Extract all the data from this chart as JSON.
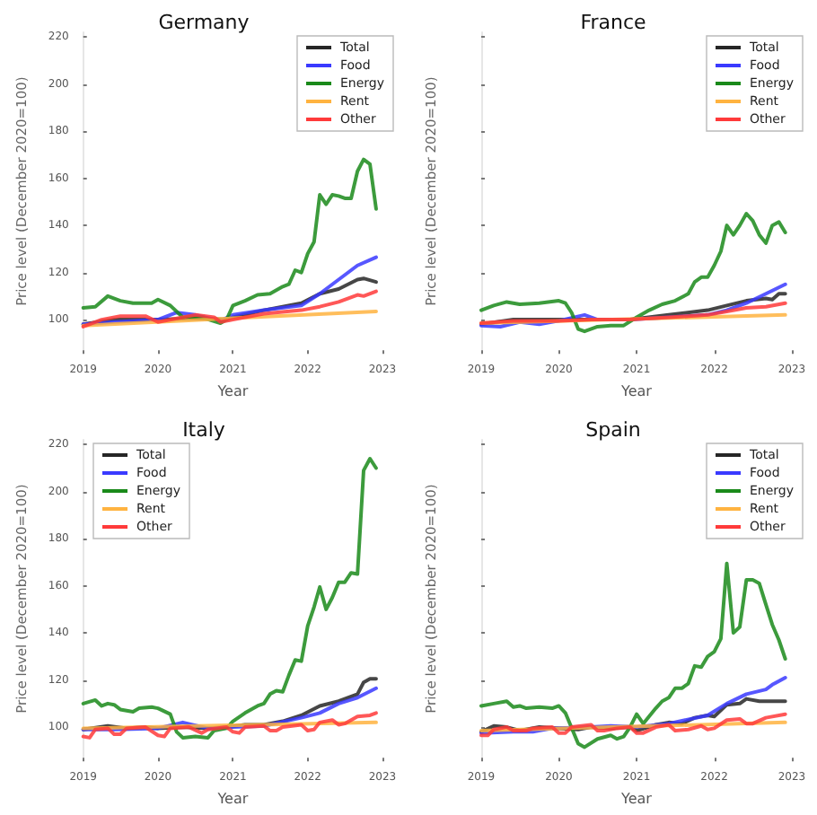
{
  "chart_data": [
    {
      "type": "line",
      "title": "Germany",
      "xlabel": "Year",
      "ylabel": "Price level (December 2020=100)",
      "xlim": [
        "2019",
        "2023"
      ],
      "xticks": [
        "2019",
        "2020",
        "2021",
        "2022",
        "2023"
      ],
      "ylim": [
        87,
        222
      ],
      "yticks": [
        100,
        120,
        140,
        160,
        180,
        200,
        220
      ],
      "legend": "top right",
      "marker": "none",
      "series": [
        {
          "name": "Total",
          "color": "#262626",
          "x": [
            "2019-01",
            "2019-06",
            "2020-01",
            "2020-07",
            "2020-12",
            "2021-01",
            "2021-06",
            "2021-12",
            "2022-03",
            "2022-06",
            "2022-09",
            "2022-10",
            "2022-12"
          ],
          "values": [
            98,
            100,
            100,
            100.5,
            100,
            101,
            104,
            107,
            111,
            113,
            117,
            117.5,
            116
          ]
        },
        {
          "name": "Food",
          "color": "#3a3aff",
          "x": [
            "2019-01",
            "2019-06",
            "2020-01",
            "2020-04",
            "2020-07",
            "2020-11",
            "2021-01",
            "2021-06",
            "2021-12",
            "2022-03",
            "2022-06",
            "2022-09",
            "2022-12"
          ],
          "values": [
            98,
            99,
            100,
            103,
            102,
            99.5,
            102,
            104,
            106,
            111,
            117,
            123,
            126.5
          ]
        },
        {
          "name": "Energy",
          "color": "#1a8a1a",
          "x": [
            "2019-01",
            "2019-03",
            "2019-05",
            "2019-07",
            "2019-09",
            "2019-12",
            "2020-01",
            "2020-03",
            "2020-05",
            "2020-08",
            "2020-11",
            "2020-12",
            "2021-01",
            "2021-03",
            "2021-05",
            "2021-07",
            "2021-09",
            "2021-10",
            "2021-11",
            "2021-12",
            "2022-01",
            "2022-02",
            "2022-03",
            "2022-04",
            "2022-05",
            "2022-06",
            "2022-07",
            "2022-08",
            "2022-09",
            "2022-10",
            "2022-11",
            "2022-12"
          ],
          "values": [
            105,
            105.5,
            110,
            108,
            107,
            107,
            108.5,
            106,
            101,
            101,
            98.5,
            100,
            106,
            108,
            110.5,
            111,
            114,
            115,
            121,
            120,
            128,
            133,
            153,
            149,
            153,
            152.5,
            151.5,
            151.5,
            163,
            168,
            166,
            147
          ]
        },
        {
          "name": "Rent",
          "color": "#ffb340",
          "x": [
            "2019-01",
            "2022-12"
          ],
          "values": [
            97.5,
            103.5
          ]
        },
        {
          "name": "Other",
          "color": "#ff3a3a",
          "x": [
            "2019-01",
            "2019-04",
            "2019-07",
            "2019-11",
            "2020-01",
            "2020-05",
            "2020-07",
            "2020-10",
            "2020-11",
            "2021-01",
            "2021-06",
            "2021-12",
            "2022-03",
            "2022-06",
            "2022-09",
            "2022-10",
            "2022-12"
          ],
          "values": [
            97,
            100,
            101.5,
            101.5,
            99,
            101,
            102,
            101,
            99,
            100,
            102.5,
            104,
            105.5,
            107.5,
            110.5,
            110,
            112
          ]
        }
      ]
    },
    {
      "type": "line",
      "title": "France",
      "xlabel": "Year",
      "ylabel": "Price level (December 2020=100)",
      "xlim": [
        "2019",
        "2023"
      ],
      "xticks": [
        "2019",
        "2020",
        "2021",
        "2022",
        "2023"
      ],
      "ylim": [
        87,
        222
      ],
      "yticks": [
        100,
        120,
        140,
        160,
        180,
        200,
        220
      ],
      "tick_labels": "x",
      "legend": "top right",
      "marker": "none",
      "series": [
        {
          "name": "Total",
          "color": "#262626",
          "x": [
            "2019-01",
            "2019-06",
            "2020-01",
            "2020-06",
            "2020-12",
            "2021-06",
            "2021-12",
            "2022-03",
            "2022-06",
            "2022-09",
            "2022-10",
            "2022-11",
            "2022-12"
          ],
          "values": [
            98,
            100,
            100,
            100,
            100,
            102,
            104,
            106,
            108,
            109,
            108.5,
            111,
            111
          ]
        },
        {
          "name": "Food",
          "color": "#3a3aff",
          "x": [
            "2019-01",
            "2019-04",
            "2019-07",
            "2019-10",
            "2020-01",
            "2020-05",
            "2020-07",
            "2020-12",
            "2021-06",
            "2021-12",
            "2022-03",
            "2022-06",
            "2022-09",
            "2022-12"
          ],
          "values": [
            97.5,
            97,
            99,
            98,
            99.5,
            102,
            100,
            100,
            101,
            102,
            104,
            107,
            111,
            115
          ]
        },
        {
          "name": "Energy",
          "color": "#1a8a1a",
          "x": [
            "2019-01",
            "2019-03",
            "2019-05",
            "2019-07",
            "2019-10",
            "2020-01",
            "2020-02",
            "2020-03",
            "2020-04",
            "2020-05",
            "2020-07",
            "2020-09",
            "2020-11",
            "2021-01",
            "2021-03",
            "2021-05",
            "2021-07",
            "2021-09",
            "2021-10",
            "2021-11",
            "2021-12",
            "2022-01",
            "2022-02",
            "2022-03",
            "2022-04",
            "2022-05",
            "2022-06",
            "2022-07",
            "2022-08",
            "2022-09",
            "2022-10",
            "2022-11",
            "2022-12"
          ],
          "values": [
            104,
            106,
            107.5,
            106.5,
            107,
            108,
            107,
            103,
            96,
            95,
            97,
            97.5,
            97.5,
            101,
            104,
            106.5,
            108,
            111,
            116,
            118,
            118,
            123,
            129,
            140,
            136,
            140,
            145,
            142,
            136,
            132.5,
            140,
            141.5,
            137
          ]
        },
        {
          "name": "Rent",
          "color": "#ffb340",
          "x": [
            "2019-01",
            "2022-12"
          ],
          "values": [
            98.5,
            102
          ]
        },
        {
          "name": "Other",
          "color": "#ff3a3a",
          "x": [
            "2019-01",
            "2019-06",
            "2020-01",
            "2020-06",
            "2020-12",
            "2021-06",
            "2021-12",
            "2022-03",
            "2022-06",
            "2022-09",
            "2022-12"
          ],
          "values": [
            98.5,
            99.5,
            99.5,
            100,
            100,
            101,
            102,
            103.5,
            105,
            105.5,
            107
          ]
        }
      ]
    },
    {
      "type": "line",
      "title": "Italy",
      "xlabel": "Year",
      "ylabel": "Price level (December 2020=100)",
      "xlim": [
        "2019",
        "2023"
      ],
      "xticks": [
        "2019",
        "2020",
        "2021",
        "2022",
        "2023"
      ],
      "ylim": [
        87,
        222
      ],
      "yticks": [
        100,
        120,
        140,
        160,
        180,
        200,
        220
      ],
      "legend": "top left",
      "marker": "none",
      "series": [
        {
          "name": "Total",
          "color": "#262626",
          "x": [
            "2019-01",
            "2019-05",
            "2019-08",
            "2019-11",
            "2020-01",
            "2020-05",
            "2020-09",
            "2020-12",
            "2021-03",
            "2021-06",
            "2021-09",
            "2021-12",
            "2022-03",
            "2022-06",
            "2022-09",
            "2022-10",
            "2022-11",
            "2022-12"
          ],
          "values": [
            99,
            100.5,
            99.5,
            100,
            99.5,
            100,
            99.5,
            100,
            101,
            101,
            102.5,
            105,
            109,
            111,
            114,
            119,
            120.5,
            120.5
          ]
        },
        {
          "name": "Food",
          "color": "#3a3aff",
          "x": [
            "2019-01",
            "2019-06",
            "2020-01",
            "2020-05",
            "2020-09",
            "2021-01",
            "2021-06",
            "2021-12",
            "2022-03",
            "2022-06",
            "2022-09",
            "2022-12"
          ],
          "values": [
            99,
            99,
            99.5,
            102,
            99.5,
            100,
            100.5,
            104,
            106,
            110,
            112.5,
            116.5
          ]
        },
        {
          "name": "Energy",
          "color": "#1a8a1a",
          "x": [
            "2019-01",
            "2019-03",
            "2019-04",
            "2019-05",
            "2019-06",
            "2019-07",
            "2019-09",
            "2019-10",
            "2019-12",
            "2020-01",
            "2020-03",
            "2020-04",
            "2020-05",
            "2020-07",
            "2020-09",
            "2020-10",
            "2020-12",
            "2021-01",
            "2021-03",
            "2021-05",
            "2021-06",
            "2021-07",
            "2021-08",
            "2021-09",
            "2021-10",
            "2021-11",
            "2021-12",
            "2022-01",
            "2022-02",
            "2022-03",
            "2022-04",
            "2022-05",
            "2022-06",
            "2022-07",
            "2022-08",
            "2022-09",
            "2022-10",
            "2022-11",
            "2022-12"
          ],
          "values": [
            110,
            111.5,
            109,
            110,
            109.5,
            107.5,
            106.5,
            108,
            108.5,
            108,
            105.5,
            98,
            95.5,
            96,
            95.5,
            98.5,
            99.5,
            102.5,
            106,
            109,
            110,
            114,
            115.5,
            115,
            122,
            128.5,
            128,
            143,
            151,
            159.5,
            150,
            155,
            161.5,
            161.5,
            165.5,
            165,
            209,
            214,
            210
          ]
        },
        {
          "name": "Rent",
          "color": "#ffb340",
          "x": [
            "2019-01",
            "2022-12"
          ],
          "values": [
            99.5,
            102
          ]
        },
        {
          "name": "Other",
          "color": "#ff3a3a",
          "x": [
            "2019-01",
            "2019-02",
            "2019-03",
            "2019-05",
            "2019-06",
            "2019-07",
            "2019-08",
            "2019-11",
            "2020-01",
            "2020-02",
            "2020-03",
            "2020-06",
            "2020-08",
            "2020-09",
            "2020-12",
            "2021-01",
            "2021-02",
            "2021-03",
            "2021-06",
            "2021-07",
            "2021-08",
            "2021-09",
            "2021-12",
            "2022-01",
            "2022-02",
            "2022-03",
            "2022-05",
            "2022-06",
            "2022-07",
            "2022-09",
            "2022-11",
            "2022-12"
          ],
          "values": [
            96,
            95.5,
            99,
            99.5,
            97,
            97,
            99.5,
            100,
            96.5,
            96,
            99.5,
            100,
            97.5,
            99,
            100,
            98,
            97.5,
            100,
            100.5,
            98.5,
            98.5,
            100,
            101,
            98.5,
            99,
            102,
            103,
            101,
            101.5,
            104.5,
            105,
            106
          ]
        }
      ]
    },
    {
      "type": "line",
      "title": "Spain",
      "xlabel": "Year",
      "ylabel": "Price level (December 2020=100)",
      "xlim": [
        "2019",
        "2023"
      ],
      "xticks": [
        "2019",
        "2020",
        "2021",
        "2022",
        "2023"
      ],
      "ylim": [
        87,
        222
      ],
      "yticks": [
        100,
        120,
        140,
        160,
        180,
        200,
        220
      ],
      "tick_labels": "x",
      "legend": "top right",
      "marker": "none",
      "series": [
        {
          "name": "Total",
          "color": "#262626",
          "x": [
            "2019-01",
            "2019-03",
            "2019-05",
            "2019-07",
            "2019-10",
            "2020-01",
            "2020-04",
            "2020-06",
            "2020-09",
            "2020-12",
            "2021-01",
            "2021-04",
            "2021-06",
            "2021-08",
            "2021-10",
            "2021-12",
            "2022-01",
            "2022-03",
            "2022-05",
            "2022-06",
            "2022-08",
            "2022-12"
          ],
          "values": [
            98,
            100.5,
            100,
            98.5,
            100,
            99.5,
            99,
            100,
            99.5,
            100,
            98.5,
            101,
            102,
            101.5,
            104,
            105,
            104.5,
            109.5,
            110,
            112,
            111,
            111
          ]
        },
        {
          "name": "Food",
          "color": "#3a3aff",
          "x": [
            "2019-01",
            "2019-06",
            "2019-09",
            "2019-12",
            "2020-06",
            "2020-09",
            "2021-01",
            "2021-06",
            "2021-12",
            "2022-03",
            "2022-06",
            "2022-09",
            "2022-10",
            "2022-12"
          ],
          "values": [
            97.5,
            98,
            98,
            99.5,
            100,
            100.5,
            100,
            101.5,
            105,
            110,
            114,
            116,
            118,
            121
          ]
        },
        {
          "name": "Energy",
          "color": "#1a8a1a",
          "x": [
            "2019-01",
            "2019-03",
            "2019-05",
            "2019-06",
            "2019-07",
            "2019-08",
            "2019-10",
            "2019-12",
            "2020-01",
            "2020-02",
            "2020-04",
            "2020-05",
            "2020-07",
            "2020-09",
            "2020-10",
            "2020-11",
            "2020-12",
            "2021-01",
            "2021-02",
            "2021-04",
            "2021-05",
            "2021-06",
            "2021-07",
            "2021-08",
            "2021-09",
            "2021-10",
            "2021-11",
            "2021-12",
            "2022-01",
            "2022-02",
            "2022-03",
            "2022-04",
            "2022-05",
            "2022-06",
            "2022-07",
            "2022-08",
            "2022-09",
            "2022-10",
            "2022-11",
            "2022-12"
          ],
          "values": [
            109,
            110,
            111,
            108.5,
            109,
            108,
            108.5,
            108,
            109,
            106,
            93,
            91.5,
            95,
            96.5,
            95,
            96,
            100,
            105.5,
            101.5,
            108,
            111,
            112.5,
            116.5,
            116.5,
            118.5,
            126,
            125.5,
            130,
            132,
            137.5,
            169.5,
            140,
            142.5,
            162.5,
            162.5,
            161,
            152,
            143.5,
            137,
            129
          ]
        },
        {
          "name": "Rent",
          "color": "#ffb340",
          "x": [
            "2019-01",
            "2022-12"
          ],
          "values": [
            98.5,
            102
          ]
        },
        {
          "name": "Other",
          "color": "#ff3a3a",
          "x": [
            "2019-01",
            "2019-02",
            "2019-03",
            "2019-05",
            "2019-06",
            "2019-08",
            "2019-09",
            "2019-12",
            "2020-01",
            "2020-02",
            "2020-03",
            "2020-06",
            "2020-07",
            "2020-08",
            "2020-10",
            "2020-12",
            "2021-01",
            "2021-02",
            "2021-04",
            "2021-06",
            "2021-07",
            "2021-09",
            "2021-11",
            "2021-12",
            "2022-01",
            "2022-03",
            "2022-05",
            "2022-06",
            "2022-07",
            "2022-09",
            "2022-12"
          ],
          "values": [
            96.5,
            96.5,
            99,
            100,
            98.5,
            98.5,
            99.5,
            100,
            97.5,
            97.5,
            100,
            101,
            98.5,
            98.5,
            99.5,
            100,
            97.5,
            97.5,
            100,
            101,
            98.5,
            99,
            100.5,
            99,
            99.5,
            103,
            103.5,
            101.5,
            101.5,
            104,
            105.5
          ]
        }
      ]
    }
  ]
}
